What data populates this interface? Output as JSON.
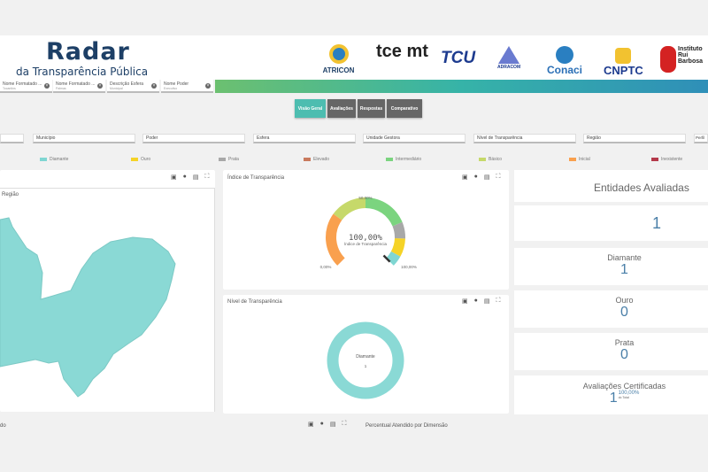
{
  "header": {
    "brand_title": "Radar",
    "brand_subtitle": "da Transparência Pública",
    "partners": [
      "ATRICON",
      "tce mt",
      "TCU",
      "ADRACOM",
      "Conaci",
      "CNPTC",
      "Instituto Rui Barbosa"
    ]
  },
  "active_filters": [
    {
      "label": "Nome Formatado ...",
      "value": "Tocantins"
    },
    {
      "label": "Nome Formatado ...",
      "value": "Palmas"
    },
    {
      "label": "Descrição Esfera",
      "value": "Municipal"
    },
    {
      "label": "Nome Poder",
      "value": "Executivo"
    }
  ],
  "tabs": [
    {
      "label": "Visão Geral",
      "active": true
    },
    {
      "label": "Avaliações"
    },
    {
      "label": "Respostas"
    },
    {
      "label": "Comparativo"
    }
  ],
  "filters": [
    "",
    "Município",
    "Poder",
    "Esfera",
    "Unidade Gestora",
    "Nível de Transparência",
    "Região",
    "Perfil"
  ],
  "legend": [
    {
      "label": "Diamante",
      "color": "#7fd6d2"
    },
    {
      "label": "Ouro",
      "color": "#f5d327"
    },
    {
      "label": "Prata",
      "color": "#a8a8a8"
    },
    {
      "label": "Elevado",
      "color": "#c97a5d"
    },
    {
      "label": "Intermediário",
      "color": "#7bd47f"
    },
    {
      "label": "Básico",
      "color": "#c6d96a"
    },
    {
      "label": "Inicial",
      "color": "#f9a04e"
    },
    {
      "label": "Inexistente",
      "color": "#b4394b"
    }
  ],
  "map_panel": {
    "title": "Região",
    "fill": "#8ad9d5"
  },
  "gauge_panel": {
    "title": "Índice de Transparência",
    "value_label": "100,00%",
    "caption": "Índice de Transparência",
    "min_label": "0,00%",
    "mid_label": "50,00%",
    "max_label": "100,00%",
    "value": 100,
    "segments": [
      {
        "from": 0,
        "to": 30,
        "color": "#f9a04e"
      },
      {
        "from": 30,
        "to": 50,
        "color": "#c6d96a"
      },
      {
        "from": 50,
        "to": 75,
        "color": "#7bd47f"
      },
      {
        "from": 75,
        "to": 84,
        "color": "#a8a8a8"
      },
      {
        "from": 84,
        "to": 94,
        "color": "#f5d327"
      },
      {
        "from": 94,
        "to": 100,
        "color": "#7fd6d2"
      }
    ]
  },
  "level_panel": {
    "title": "Nível de Transparência",
    "center_label": "Diamante",
    "center_value": "1",
    "color": "#8ad9d5"
  },
  "stats": {
    "title": "Entidades Avaliadas",
    "total": "1",
    "items": [
      {
        "label": "Diamante",
        "value": "1"
      },
      {
        "label": "Ouro",
        "value": "0"
      },
      {
        "label": "Prata",
        "value": "0"
      }
    ],
    "certified": {
      "label": "Avaliações Certificadas",
      "value": "1",
      "percent": "100,00%",
      "percent_caption": "do Total"
    }
  },
  "bottom": {
    "left_title": "do",
    "right_title": "Percentual Atendido por Dimensão"
  }
}
